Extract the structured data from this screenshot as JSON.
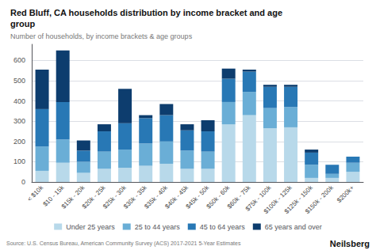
{
  "chart_data": {
    "type": "bar",
    "title": "Red Bluff, CA households distribution by income bracket and age\ngroup",
    "subtitle": "Number of households, by income brackets & age groups",
    "annotations": [
      "Source: U.S. Census Bureau, American Community Survey (ACS) 2017-2021 5-Year Estimates",
      "Neilsberg"
    ],
    "categories": [
      "< $10k",
      "$10 - 15k",
      "$15k - 20k",
      "$20k - 25k",
      "$25k - 30k",
      "$30k - 35k",
      "$35k - 40k",
      "$40k - 45k",
      "$45k - 50k",
      "$50k - 60k",
      "$60k - 75k",
      "$75k - 100k",
      "$100k - 125k",
      "$125k - 150k",
      "$150k - 200k",
      "$200k+"
    ],
    "series": [
      {
        "name": "Under 25 years",
        "color": "#b8d9ea",
        "values": [
          55,
          95,
          45,
          65,
          70,
          80,
          90,
          65,
          65,
          285,
          330,
          265,
          270,
          20,
          20,
          50
        ]
      },
      {
        "name": "25 to 44 years",
        "color": "#6aaed6",
        "values": [
          120,
          115,
          55,
          85,
          90,
          110,
          110,
          90,
          85,
          110,
          115,
          100,
          100,
          65,
          20,
          45
        ]
      },
      {
        "name": "45 to 64 years",
        "color": "#2878b5",
        "values": [
          185,
          185,
          55,
          100,
          130,
          125,
          130,
          100,
          100,
          115,
          100,
          105,
          100,
          60,
          45,
          30
        ]
      },
      {
        "name": "65 years and over",
        "color": "#0d3d6e",
        "values": [
          195,
          255,
          50,
          35,
          170,
          15,
          55,
          30,
          55,
          50,
          10,
          10,
          10,
          15,
          0,
          0
        ]
      }
    ],
    "stacked": true,
    "ylim": [
      0,
      680
    ],
    "yticks": [
      0,
      100,
      200,
      300,
      400,
      500,
      600
    ],
    "grid": true,
    "legend": "bottom"
  }
}
